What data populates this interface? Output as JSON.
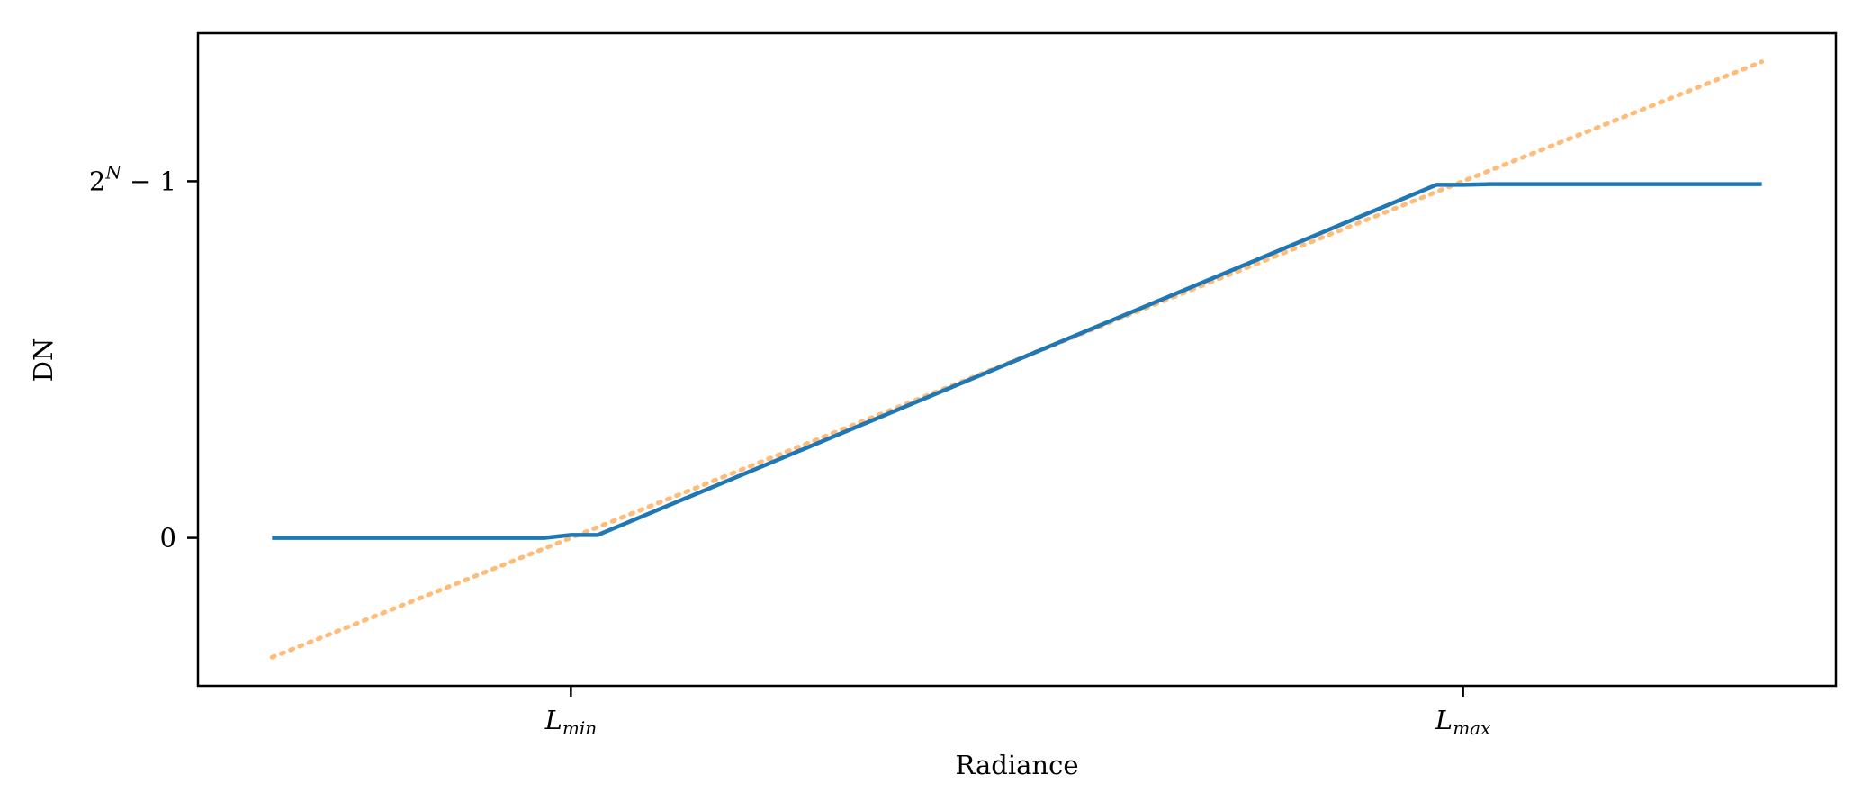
{
  "chart_data": {
    "type": "line",
    "title": "",
    "xlabel": "Radiance",
    "ylabel": "DN",
    "x_ticks": [
      {
        "value": 0,
        "base": "L",
        "sub": "min"
      },
      {
        "value": 1,
        "base": "L",
        "sub": "max"
      }
    ],
    "y_ticks": [
      {
        "value": 0,
        "label": "0"
      },
      {
        "value": 1,
        "base": "2",
        "sup": "N",
        "rest": " − 1"
      }
    ],
    "xlim": [
      -0.418,
      1.418
    ],
    "ylim": [
      -0.415,
      1.415
    ],
    "grid": false,
    "legend": "none",
    "series": [
      {
        "color": "#1f77b4",
        "style": "solid",
        "x": [
          -0.335,
          -0.03,
          0.0,
          0.03,
          0.97,
          1.0,
          1.03,
          1.335
        ],
        "y": [
          0,
          0,
          0.008,
          0.008,
          0.99,
          0.99,
          0.992,
          0.992
        ]
      },
      {
        "color": "#ffbb78",
        "style": "dotted",
        "x": [
          -0.335,
          1.335
        ],
        "y": [
          -0.335,
          1.335
        ]
      }
    ]
  }
}
